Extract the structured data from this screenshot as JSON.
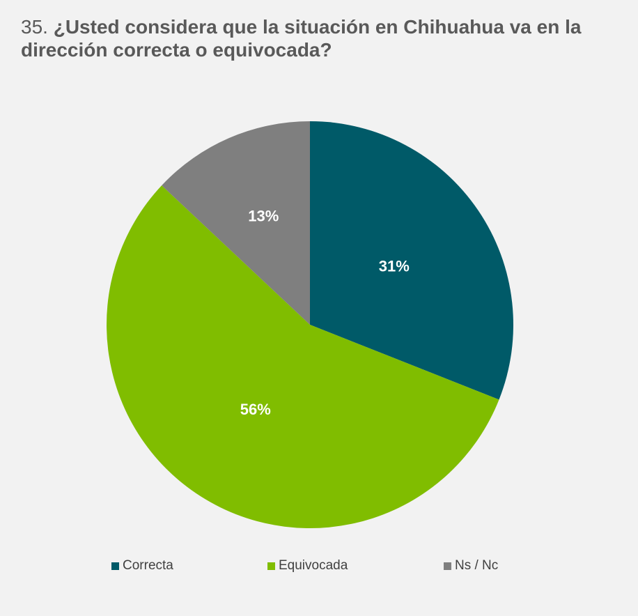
{
  "title": {
    "number": "35.",
    "question": "¿Usted considera que la situación en Chihuahua va en la dirección correcta o equivocada?"
  },
  "chart_data": {
    "type": "pie",
    "title": "35. ¿Usted considera que la situación en Chihuahua va en la dirección correcta o equivocada?",
    "start_angle": "12 o'clock",
    "direction": "clockwise",
    "legend_position": "bottom",
    "slices": [
      {
        "name": "Correcta",
        "value": 31,
        "label": "31%",
        "color": "#005a68"
      },
      {
        "name": "Equivocada",
        "value": 56,
        "label": "56%",
        "color": "#80bd00"
      },
      {
        "name": "Ns / Nc",
        "value": 13,
        "label": "13%",
        "color": "#7f7f7f"
      }
    ]
  }
}
